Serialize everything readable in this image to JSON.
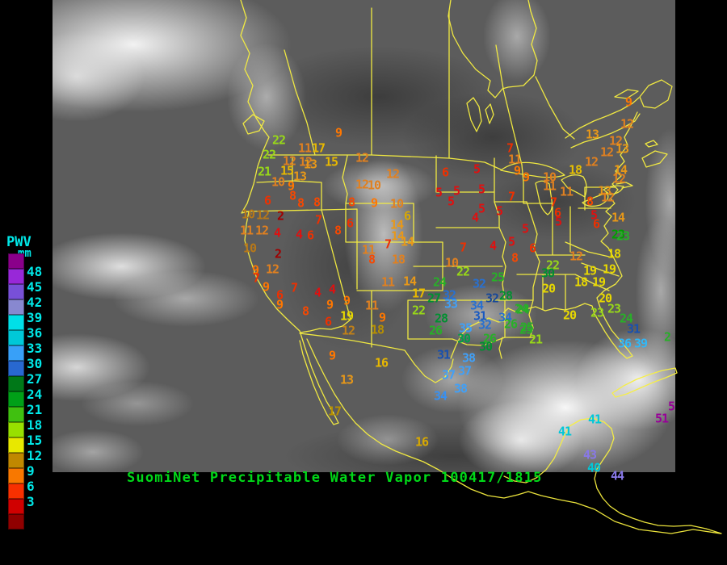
{
  "header": {
    "title": "SuomiNet Precipitable Water Vapor 100417/1815",
    "color": "#00d818"
  },
  "legend": {
    "title": "PWV",
    "unit": "mm",
    "text_color": "#00e8e8",
    "entries": [
      {
        "label": "",
        "color": "#8a008a"
      },
      {
        "label": "48",
        "color": "#9828d8"
      },
      {
        "label": "45",
        "color": "#7850d8"
      },
      {
        "label": "42",
        "color": "#8888d0"
      },
      {
        "label": "39",
        "color": "#00e0e8"
      },
      {
        "label": "36",
        "color": "#00c8d8"
      },
      {
        "label": "33",
        "color": "#38a0f8"
      },
      {
        "label": "30",
        "color": "#2868d0"
      },
      {
        "label": "27",
        "color": "#007818"
      },
      {
        "label": "24",
        "color": "#00a018"
      },
      {
        "label": "21",
        "color": "#40c010"
      },
      {
        "label": "18",
        "color": "#98e000"
      },
      {
        "label": "15",
        "color": "#e8e800"
      },
      {
        "label": "12",
        "color": "#c08800"
      },
      {
        "label": "9",
        "color": "#f87800"
      },
      {
        "label": "6",
        "color": "#f83000"
      },
      {
        "label": "3",
        "color": "#d00000"
      },
      {
        "label": "",
        "color": "#900000"
      }
    ]
  },
  "map": {
    "units": "mm",
    "value_colors": [
      {
        "max": 2,
        "color": "#a00000"
      },
      {
        "max": 5,
        "color": "#e01010"
      },
      {
        "max": 7,
        "color": "#ee3000"
      },
      {
        "max": 8,
        "color": "#f84800"
      },
      {
        "max": 9,
        "color": "#ff7700"
      },
      {
        "max": 12,
        "color": "#e08020"
      },
      {
        "max": 14,
        "color": "#e89818"
      },
      {
        "max": 17,
        "color": "#e8b800"
      },
      {
        "max": 20,
        "color": "#e8d800"
      },
      {
        "max": 23,
        "color": "#98d818"
      },
      {
        "max": 26,
        "color": "#28b028"
      },
      {
        "max": 30,
        "color": "#009030"
      },
      {
        "max": 34,
        "color": "#2870d0"
      },
      {
        "max": 38,
        "color": "#40a0f8"
      },
      {
        "max": 41,
        "color": "#00c8d8"
      },
      {
        "max": 44,
        "color": "#8878e8"
      },
      {
        "max": 48,
        "color": "#9830d8"
      },
      {
        "max": 99,
        "color": "#980098"
      }
    ],
    "stations": [
      [
        "22",
        345,
        174
      ],
      [
        "22",
        333,
        192
      ],
      [
        "21",
        327,
        213
      ],
      [
        "11",
        377,
        184
      ],
      [
        "17",
        394,
        184
      ],
      [
        "12",
        358,
        200
      ],
      [
        "12",
        378,
        201
      ],
      [
        "15",
        410,
        201
      ],
      [
        "15",
        355,
        212
      ],
      [
        "13",
        384,
        204
      ],
      [
        "13",
        371,
        219
      ],
      [
        "10",
        344,
        226
      ],
      [
        "9",
        360,
        231
      ],
      [
        "9",
        419,
        165
      ],
      [
        "12",
        448,
        196
      ],
      [
        "12",
        486,
        216
      ],
      [
        "12",
        448,
        229
      ],
      [
        "10",
        463,
        230
      ],
      [
        "8",
        362,
        243
      ],
      [
        "8",
        372,
        252
      ],
      [
        "8",
        392,
        251
      ],
      [
        "6",
        331,
        249
      ],
      [
        "8",
        435,
        251
      ],
      [
        "9",
        463,
        252
      ],
      [
        "10",
        491,
        253
      ],
      [
        "6",
        504,
        268,
        "#d8a800"
      ],
      [
        "14",
        491,
        279
      ],
      [
        "10",
        307,
        266,
        "#b87818"
      ],
      [
        "12",
        325,
        267,
        "#b87818"
      ],
      [
        "2",
        347,
        268
      ],
      [
        "7",
        394,
        273
      ],
      [
        "6",
        433,
        277
      ],
      [
        "8",
        418,
        286
      ],
      [
        "11",
        305,
        286
      ],
      [
        "12",
        324,
        286
      ],
      [
        "4",
        343,
        289
      ],
      [
        "4",
        370,
        291
      ],
      [
        "6",
        384,
        292
      ],
      [
        "7",
        480,
        303
      ],
      [
        "14",
        492,
        293
      ],
      [
        "14",
        504,
        300
      ],
      [
        "10",
        309,
        308,
        "#b87818"
      ],
      [
        "2",
        344,
        315
      ],
      [
        "9",
        316,
        335
      ],
      [
        "12",
        337,
        334
      ],
      [
        "7",
        317,
        345
      ],
      [
        "9",
        329,
        356
      ],
      [
        "7",
        364,
        357
      ],
      [
        "6",
        346,
        366
      ],
      [
        "9",
        346,
        378
      ],
      [
        "4",
        393,
        363
      ],
      [
        "4",
        411,
        359
      ],
      [
        "8",
        378,
        386
      ],
      [
        "9",
        408,
        378
      ],
      [
        "9",
        429,
        373
      ],
      [
        "6",
        406,
        399
      ],
      [
        "19",
        429,
        392
      ],
      [
        "12",
        431,
        410,
        "#c08018"
      ],
      [
        "18",
        467,
        409,
        "#b89000"
      ],
      [
        "9",
        473,
        394
      ],
      [
        "11",
        460,
        379
      ],
      [
        "11",
        456,
        310
      ],
      [
        "8",
        460,
        322
      ],
      [
        "18",
        493,
        322,
        "#e08020"
      ],
      [
        "9",
        411,
        441
      ],
      [
        "13",
        429,
        471
      ],
      [
        "17",
        414,
        510,
        "#b89000"
      ],
      [
        "11",
        480,
        350
      ],
      [
        "14",
        507,
        349
      ],
      [
        "17",
        518,
        364
      ],
      [
        "22",
        518,
        385
      ],
      [
        "5",
        543,
        239
      ],
      [
        "5",
        565,
        237
      ],
      [
        "5",
        558,
        250
      ],
      [
        "6",
        551,
        214
      ],
      [
        "5",
        590,
        210
      ],
      [
        "5",
        596,
        235
      ],
      [
        "4",
        588,
        270
      ],
      [
        "5",
        596,
        259
      ],
      [
        "5",
        618,
        262
      ],
      [
        "7",
        633,
        244
      ],
      [
        "9",
        640,
        212
      ],
      [
        "9",
        651,
        220
      ],
      [
        "11",
        637,
        198
      ],
      [
        "7",
        631,
        184
      ],
      [
        "7",
        573,
        307
      ],
      [
        "4",
        610,
        305
      ],
      [
        "5",
        633,
        300
      ],
      [
        "8",
        637,
        320
      ],
      [
        "10",
        559,
        326
      ],
      [
        "22",
        573,
        337
      ],
      [
        "24",
        544,
        350
      ],
      [
        "25",
        616,
        344
      ],
      [
        "32",
        593,
        352
      ],
      [
        "27",
        537,
        370
      ],
      [
        "32",
        556,
        366
      ],
      [
        "33",
        558,
        377,
        "#40a0f8"
      ],
      [
        "34",
        590,
        379
      ],
      [
        "32",
        609,
        370,
        "#184898"
      ],
      [
        "28",
        626,
        367
      ],
      [
        "28",
        546,
        395
      ],
      [
        "26",
        539,
        410
      ],
      [
        "31",
        594,
        392,
        "#1858c0"
      ],
      [
        "35",
        576,
        407
      ],
      [
        "32",
        600,
        403
      ],
      [
        "34",
        625,
        394
      ],
      [
        "30",
        574,
        420,
        "#00a048"
      ],
      [
        "26",
        606,
        420
      ],
      [
        "30",
        601,
        430
      ],
      [
        "24",
        647,
        384
      ],
      [
        "26",
        632,
        402
      ],
      [
        "25",
        651,
        409
      ],
      [
        "21",
        663,
        421
      ],
      [
        "31",
        549,
        440,
        "#1850b0"
      ],
      [
        "38",
        580,
        444
      ],
      [
        "37",
        575,
        460
      ],
      [
        "37",
        555,
        465
      ],
      [
        "38",
        570,
        482
      ],
      [
        "34",
        545,
        491,
        "#3890f0"
      ],
      [
        "16",
        472,
        450
      ],
      [
        "16",
        522,
        548,
        "#d8a800"
      ],
      [
        "5",
        650,
        284
      ],
      [
        "6",
        659,
        308
      ],
      [
        "22",
        684,
        329
      ],
      [
        "12",
        713,
        318
      ],
      [
        "30",
        678,
        339
      ],
      [
        "20",
        679,
        358
      ],
      [
        "18",
        760,
        315
      ],
      [
        "19",
        730,
        336
      ],
      [
        "19",
        754,
        334
      ],
      [
        "18",
        719,
        350
      ],
      [
        "19",
        741,
        350
      ],
      [
        "20",
        749,
        370
      ],
      [
        "23",
        760,
        383
      ],
      [
        "23",
        739,
        388
      ],
      [
        "20",
        705,
        391
      ],
      [
        "24",
        775,
        395
      ],
      [
        "25",
        652,
        406
      ],
      [
        "24",
        645,
        383
      ],
      [
        "31",
        784,
        408,
        "#1850b0"
      ],
      [
        "36",
        773,
        426,
        "#30b8f8"
      ],
      [
        "39",
        793,
        426,
        "#30b8f8"
      ],
      [
        "23",
        765,
        291,
        "#00a000"
      ],
      [
        "2",
        826,
        418,
        "#28b028"
      ],
      [
        "12",
        776,
        154
      ],
      [
        "13",
        733,
        167
      ],
      [
        "12",
        762,
        175
      ],
      [
        "12",
        751,
        189
      ],
      [
        "13",
        770,
        185
      ],
      [
        "12",
        732,
        201
      ],
      [
        "18",
        712,
        211,
        "#e8c000"
      ],
      [
        "14",
        768,
        211
      ],
      [
        "12",
        766,
        222
      ],
      [
        "10",
        680,
        220
      ],
      [
        "11",
        680,
        231
      ],
      [
        "11",
        701,
        238
      ],
      [
        "7",
        685,
        251
      ],
      [
        "8",
        730,
        250
      ],
      [
        "13",
        748,
        237
      ],
      [
        "12",
        752,
        245
      ],
      [
        "6",
        690,
        264
      ],
      [
        "5",
        691,
        275
      ],
      [
        "5",
        735,
        267
      ],
      [
        "6",
        738,
        278
      ],
      [
        "14",
        765,
        270
      ],
      [
        "23",
        771,
        293,
        "#28b028"
      ],
      [
        "9",
        778,
        127
      ],
      [
        "41",
        736,
        520
      ],
      [
        "41",
        699,
        535
      ],
      [
        "51",
        819,
        519
      ],
      [
        "5",
        831,
        504,
        "#980098"
      ],
      [
        "43",
        730,
        564
      ],
      [
        "40",
        735,
        580
      ],
      [
        "44",
        764,
        590
      ]
    ]
  }
}
